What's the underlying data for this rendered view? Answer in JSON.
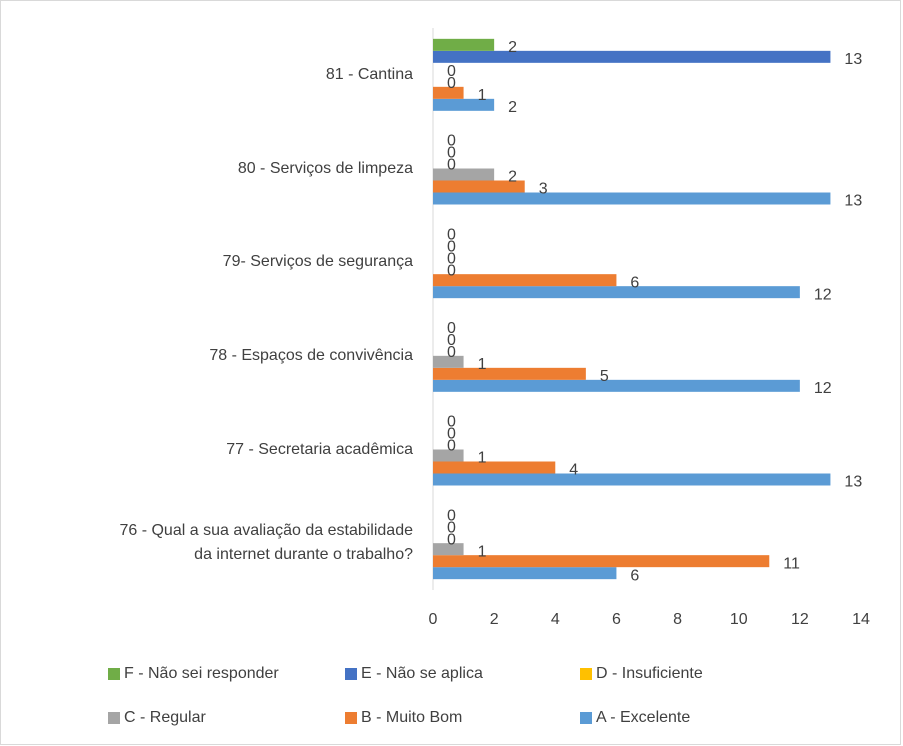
{
  "chart_data": {
    "type": "bar",
    "orientation": "horizontal",
    "categories": [
      "76 - Qual a sua avaliação  da estabilidade\nda internet durante o trabalho?",
      "77 - Secretaria acadêmica",
      "78 - Espaços de convivência",
      "79- Serviços de segurança",
      "80 - Serviços de limpeza",
      "81 - Cantina"
    ],
    "series": [
      {
        "name": "A - Excelente",
        "color": "#5b9bd5",
        "values": [
          6,
          13,
          12,
          12,
          13,
          2
        ]
      },
      {
        "name": "B - Muito Bom",
        "color": "#ed7d31",
        "values": [
          11,
          4,
          5,
          6,
          3,
          1
        ]
      },
      {
        "name": "C - Regular",
        "color": "#a5a5a5",
        "values": [
          1,
          1,
          1,
          0,
          2,
          0
        ]
      },
      {
        "name": "D - Insuficiente",
        "color": "#ffc000",
        "values": [
          0,
          0,
          0,
          0,
          0,
          0
        ]
      },
      {
        "name": "E - Não se aplica",
        "color": "#4472c4",
        "values": [
          0,
          0,
          0,
          0,
          0,
          13
        ]
      },
      {
        "name": "F - Não sei responder",
        "color": "#70ad47",
        "values": [
          0,
          0,
          0,
          0,
          0,
          2
        ]
      }
    ],
    "xlim": [
      0,
      14
    ],
    "xticks": [
      0,
      2,
      4,
      6,
      8,
      10,
      12,
      14
    ],
    "grid": false,
    "legend": "bottom"
  }
}
